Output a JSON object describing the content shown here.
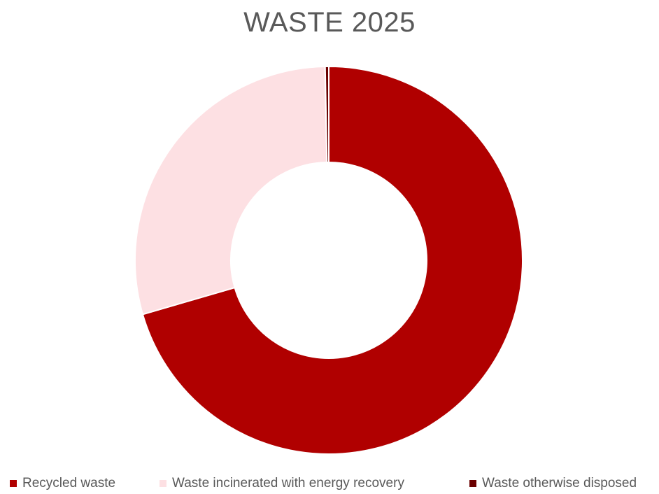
{
  "chart_data": {
    "type": "pie",
    "donut": true,
    "title": "WASTE 2025",
    "categories": [
      "Recycled waste",
      "Waste incinerated with energy recovery",
      "Waste otherwise disposed"
    ],
    "values": [
      70.5,
      29.2,
      0.3
    ],
    "unit": "%",
    "colors": [
      "#b00000",
      "#fde0e3",
      "#6b0000"
    ],
    "legend_position": "bottom",
    "start_angle_deg": 0,
    "direction": "clockwise"
  }
}
